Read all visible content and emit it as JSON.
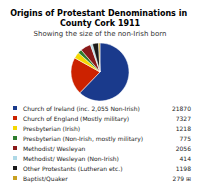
{
  "chart_data": {
    "type": "pie",
    "title": "Origins of Protestant Denominations in County Cork 1911",
    "subtitle": "Showing the size of the non-Irish born",
    "categories": [
      "Church of Ireland (inc. 2,055 Non-Irish)",
      "Church of England (Mostly military)",
      "Presbyterian (Irish)",
      "Presbyterian (Non-Irish, mostly military)",
      "Methodist/ Wesleyan",
      "Methodist/ Wesleyan (Non-Irish)",
      "Other Protestants (Lutheran etc.)",
      "Baptist/Quaker"
    ],
    "values": [
      21870,
      7327,
      1218,
      775,
      2056,
      414,
      1198,
      279
    ],
    "value_labels": [
      "21870",
      "7327",
      "1218",
      "775",
      "2056",
      "414",
      "1198",
      "279 ⊞"
    ],
    "colors": [
      "#1a3a8c",
      "#cc2200",
      "#f5d800",
      "#2e7d2e",
      "#8b1a1a",
      "#add8e6",
      "#1a1a1a",
      "#c8a020"
    ],
    "legend": "bottom"
  }
}
